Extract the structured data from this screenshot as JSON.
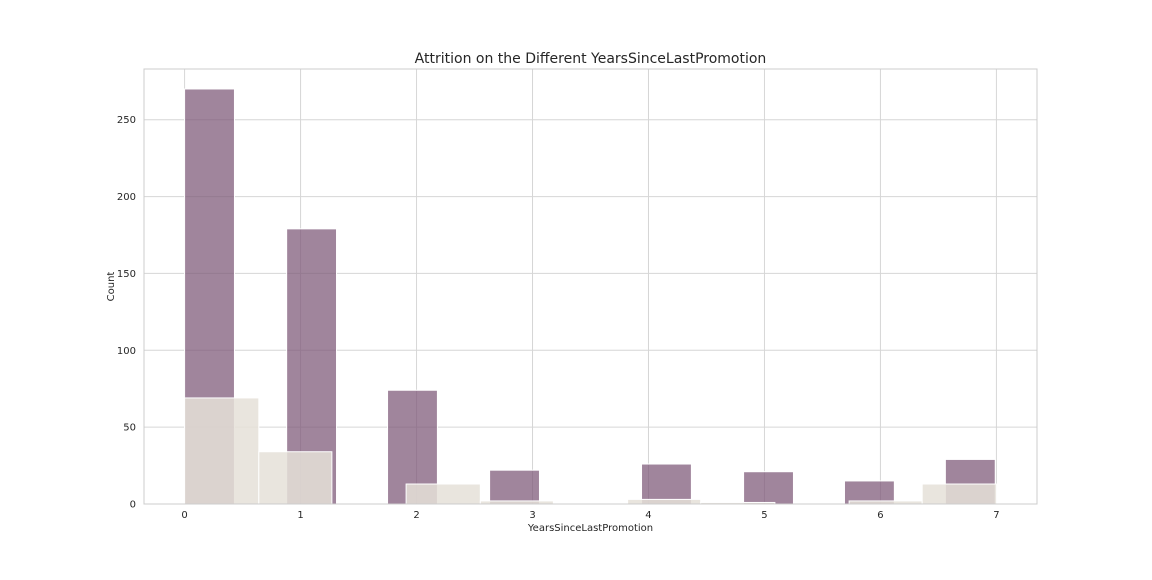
{
  "chart_data": {
    "type": "bar",
    "title": "Attrition on the Different YearsSinceLastPromotion",
    "xlabel": "YearsSinceLastPromotion",
    "ylabel": "Count",
    "xlim": [
      -0.35,
      7.35
    ],
    "ylim": [
      0,
      283
    ],
    "xticks": [
      0,
      1,
      2,
      3,
      4,
      5,
      6,
      7
    ],
    "yticks": [
      0,
      50,
      100,
      150,
      200,
      250
    ],
    "grid": true,
    "legend": "none",
    "series": [
      {
        "color": "#7b5676",
        "opacity": 0.72,
        "bins": [
          {
            "x0": 0.0,
            "x1": 0.43,
            "value": 270
          },
          {
            "x0": 0.88,
            "x1": 1.31,
            "value": 179
          },
          {
            "x0": 1.75,
            "x1": 2.18,
            "value": 74
          },
          {
            "x0": 2.63,
            "x1": 3.06,
            "value": 22
          },
          {
            "x0": 3.94,
            "x1": 4.37,
            "value": 26
          },
          {
            "x0": 4.82,
            "x1": 5.25,
            "value": 21
          },
          {
            "x0": 5.69,
            "x1": 6.12,
            "value": 15
          },
          {
            "x0": 6.56,
            "x1": 6.99,
            "value": 29
          }
        ]
      },
      {
        "color": "#e5e0d8",
        "opacity": 0.85,
        "bins": [
          {
            "x0": 0.0,
            "x1": 0.64,
            "value": 69
          },
          {
            "x0": 0.64,
            "x1": 1.27,
            "value": 34
          },
          {
            "x0": 1.91,
            "x1": 2.55,
            "value": 13
          },
          {
            "x0": 2.55,
            "x1": 3.18,
            "value": 2
          },
          {
            "x0": 3.82,
            "x1": 4.45,
            "value": 3
          },
          {
            "x0": 4.45,
            "x1": 5.09,
            "value": 1
          },
          {
            "x0": 5.73,
            "x1": 6.36,
            "value": 2
          },
          {
            "x0": 6.36,
            "x1": 7.0,
            "value": 13
          }
        ]
      }
    ]
  }
}
